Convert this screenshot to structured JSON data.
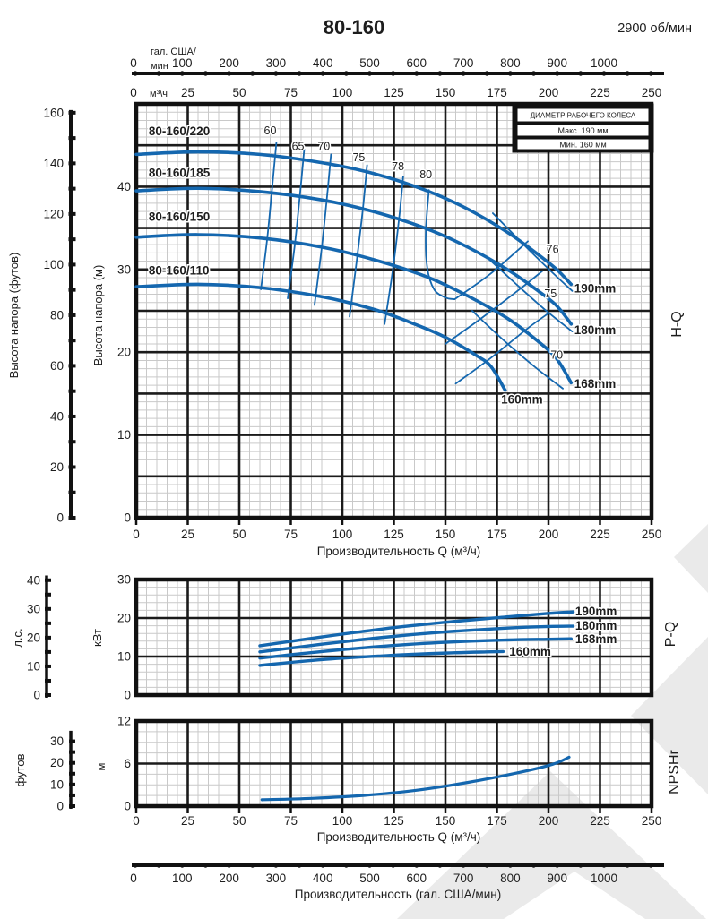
{
  "header": {
    "title": "80-160",
    "rpm": "2900 об/мин"
  },
  "legend": {
    "title": "ДИАМЕТР РАБОЧЕГО КОЛЕСА",
    "max": "Макс. 190 мм",
    "min": "Мин. 160 мм"
  },
  "colors": {
    "curve": "#1467af",
    "grid_major": "#1b1b1b",
    "grid_minor": "#c9c9c9",
    "watermark": "#eaeaea"
  },
  "top_axes": {
    "gal": {
      "unit_line1": "гал. США/",
      "unit_line2": "мин",
      "tick_labels": [
        "0",
        "100",
        "200",
        "300",
        "400",
        "500",
        "600",
        "700",
        "800",
        "900",
        "1000"
      ],
      "tick_values": [
        0,
        100,
        200,
        300,
        400,
        500,
        600,
        700,
        800,
        900,
        1000
      ],
      "range": [
        0,
        1100
      ],
      "dot_step": 50
    },
    "m3h": {
      "unit": "м³\\ч",
      "tick_labels": [
        "0",
        "25",
        "50",
        "75",
        "100",
        "125",
        "150",
        "175",
        "200",
        "225",
        "250"
      ],
      "tick_values": [
        0,
        25,
        50,
        75,
        100,
        125,
        150,
        175,
        200,
        225,
        250
      ]
    }
  },
  "bottom_axis_gal": {
    "tick_labels": [
      "0",
      "100",
      "200",
      "300",
      "400",
      "500",
      "600",
      "700",
      "800",
      "900",
      "1000"
    ],
    "tick_values": [
      0,
      100,
      200,
      300,
      400,
      500,
      600,
      700,
      800,
      900,
      1000
    ],
    "range": [
      0,
      1100
    ],
    "dot_step": 50,
    "caption": "Производительность (гал. США/мин)"
  },
  "chart_data": [
    {
      "id": "hq",
      "type": "line",
      "side_label": "H-Q",
      "x_caption": "Производительность Q (м³/ч)",
      "xlim": [
        0,
        250
      ],
      "x_major": 25,
      "x_minor": 5,
      "x_tick_labels": [
        "0",
        "25",
        "50",
        "75",
        "100",
        "125",
        "150",
        "175",
        "200",
        "225",
        "250"
      ],
      "ylim_m": [
        0,
        50
      ],
      "y_major": 5,
      "y_minor": 1,
      "y_axis_m": {
        "label": "Высота напора (м)",
        "tick_values": [
          0,
          10,
          20,
          30,
          40
        ],
        "tick_labels": [
          "0",
          "10",
          "20",
          "30",
          "40"
        ]
      },
      "y_axis_ft": {
        "label": "Высота напора (футов)",
        "range": [
          0,
          160
        ],
        "minor_step": 10,
        "tick_values": [
          0,
          20,
          40,
          60,
          80,
          100,
          120,
          140,
          160
        ],
        "tick_labels": [
          "0",
          "20",
          "40",
          "60",
          "80",
          "100",
          "120",
          "140",
          "160"
        ]
      },
      "series": [
        {
          "name": "80-160/220",
          "diameter": "190mm",
          "points": [
            [
              0,
              43.9
            ],
            [
              30,
              44.2
            ],
            [
              60,
              43.9
            ],
            [
              90,
              42.9
            ],
            [
              115,
              41.6
            ],
            [
              140,
              39.6
            ],
            [
              160,
              37.4
            ],
            [
              180,
              34.5
            ],
            [
              195,
              31.8
            ],
            [
              204,
              30.0
            ],
            [
              211,
              28.2
            ]
          ]
        },
        {
          "name": "80-160/185",
          "diameter": "180mm",
          "points": [
            [
              0,
              39.5
            ],
            [
              30,
              39.8
            ],
            [
              60,
              39.4
            ],
            [
              90,
              38.4
            ],
            [
              115,
              37.0
            ],
            [
              140,
              35.0
            ],
            [
              160,
              32.8
            ],
            [
              180,
              30.0
            ],
            [
              195,
              27.4
            ],
            [
              204,
              25.6
            ],
            [
              211,
              23.4
            ]
          ]
        },
        {
          "name": "80-160/150",
          "diameter": "168mm",
          "points": [
            [
              0,
              33.9
            ],
            [
              30,
              34.2
            ],
            [
              60,
              33.8
            ],
            [
              90,
              32.7
            ],
            [
              115,
              31.2
            ],
            [
              140,
              29.2
            ],
            [
              160,
              26.9
            ],
            [
              180,
              24.1
            ],
            [
              195,
              21.3
            ],
            [
              204,
              19.2
            ],
            [
              211,
              16.3
            ]
          ]
        },
        {
          "name": "80-160/110",
          "diameter": "160mm",
          "points": [
            [
              0,
              27.9
            ],
            [
              30,
              28.2
            ],
            [
              60,
              27.8
            ],
            [
              90,
              26.7
            ],
            [
              115,
              25.2
            ],
            [
              135,
              23.4
            ],
            [
              150,
              21.8
            ],
            [
              165,
              19.6
            ],
            [
              172,
              18.3
            ],
            [
              179,
              15.4
            ]
          ]
        }
      ],
      "model_labels": [
        {
          "text": "80-160/220",
          "pos": [
            3,
            46.2
          ]
        },
        {
          "text": "80-160/185",
          "pos": [
            3,
            41.2
          ]
        },
        {
          "text": "80-160/150",
          "pos": [
            3,
            35.9
          ]
        },
        {
          "text": "80-160/110",
          "pos": [
            3,
            29.4
          ]
        }
      ],
      "diameter_labels": [
        {
          "text": "190mm",
          "pos": [
            212.5,
            27.2
          ]
        },
        {
          "text": "180mm",
          "pos": [
            212.5,
            22.2
          ]
        },
        {
          "text": "168mm",
          "pos": [
            212.5,
            15.7
          ]
        },
        {
          "text": "160mm",
          "pos": [
            177,
            13.8
          ]
        }
      ],
      "efficiency_left": [
        {
          "label": "60",
          "label_pos": [
            65,
            46.3
          ],
          "pts": [
            [
              68,
              45.3
            ],
            [
              66,
              40
            ],
            [
              63.5,
              33.6
            ],
            [
              60.5,
              27.6
            ]
          ]
        },
        {
          "label": "65",
          "label_pos": [
            78.5,
            44.4
          ],
          "pts": [
            [
              81.5,
              44.5
            ],
            [
              79.5,
              39.2
            ],
            [
              77,
              33.1
            ],
            [
              73.5,
              26.5
            ]
          ]
        },
        {
          "label": "70",
          "label_pos": [
            91,
            44.4
          ],
          "pts": [
            [
              94.5,
              43.9
            ],
            [
              92.5,
              38.6
            ],
            [
              90,
              32.6
            ],
            [
              86.5,
              25.7
            ]
          ]
        },
        {
          "label": "75",
          "label_pos": [
            108,
            43.1
          ],
          "pts": [
            [
              112,
              42.6
            ],
            [
              110,
              37.4
            ],
            [
              107,
              31.1
            ],
            [
              103.5,
              24.3
            ]
          ]
        },
        {
          "label": "78",
          "label_pos": [
            127,
            42.0
          ],
          "pts": [
            [
              129.5,
              41.2
            ],
            [
              127.5,
              36.1
            ],
            [
              124.5,
              30
            ],
            [
              120.5,
              23.4
            ]
          ]
        },
        {
          "label": "80",
          "label_pos": [
            140.5,
            41.0
          ],
          "pts": [
            [
              142,
              39.6
            ],
            [
              140.5,
              34.5
            ],
            [
              141.2,
              30.2
            ],
            [
              144.5,
              27.6
            ],
            [
              150,
              26.6
            ],
            [
              154.5,
              26.4
            ]
          ]
        }
      ],
      "efficiency_right": [
        {
          "label": "76",
          "label_pos": [
            202,
            32.0
          ],
          "pts": [
            [
              173,
              36.8
            ],
            [
              188,
              33
            ],
            [
              202,
              29.6
            ],
            [
              211.5,
              27.4
            ]
          ]
        },
        {
          "label": "75",
          "label_pos": [
            201,
            26.6
          ],
          "pts": [
            [
              170,
              31.5
            ],
            [
              184,
              28.3
            ],
            [
              198,
              25.2
            ],
            [
              211.5,
              22.5
            ]
          ]
        },
        {
          "label": "70",
          "label_pos": [
            204,
            19.2
          ],
          "pts": [
            [
              163,
              25
            ],
            [
              178,
              21.5
            ],
            [
              193,
              18.3
            ],
            [
              207,
              15.6
            ]
          ]
        }
      ],
      "efficiency_cross": [
        {
          "pts": [
            [
              154.5,
              26.4
            ],
            [
              172,
              29.5
            ],
            [
              190,
              33.4
            ]
          ]
        },
        {
          "pts": [
            [
              150,
              21
            ],
            [
              168,
              24.2
            ],
            [
              186,
              27.6
            ],
            [
              197,
              29.8
            ]
          ]
        },
        {
          "pts": [
            [
              155,
              16.2
            ],
            [
              172,
              19.3
            ],
            [
              190,
              22.9
            ],
            [
              200,
              24.7
            ]
          ]
        }
      ]
    },
    {
      "id": "pq",
      "type": "line",
      "side_label": "P-Q",
      "xlim": [
        0,
        250
      ],
      "x_major": 25,
      "x_minor": 5,
      "ylim_kw": [
        0,
        30
      ],
      "y_major": 10,
      "y_minor": 2,
      "y_axis_kw": {
        "label": "кВт",
        "tick_values": [
          0,
          10,
          20,
          30
        ],
        "tick_labels": [
          "0",
          "10",
          "20",
          "30"
        ]
      },
      "y_axis_hp": {
        "label": "л.с.",
        "range": [
          0,
          41
        ],
        "minor_step": 5,
        "tick_values": [
          0,
          10,
          20,
          30,
          40
        ],
        "tick_labels": [
          "0",
          "10",
          "20",
          "30",
          "40"
        ]
      },
      "series": [
        {
          "name": "190mm",
          "points": [
            [
              60,
              12.8
            ],
            [
              90,
              15.1
            ],
            [
              120,
              17.2
            ],
            [
              150,
              18.9
            ],
            [
              180,
              20.3
            ],
            [
              200,
              21.2
            ],
            [
              212,
              21.6
            ]
          ]
        },
        {
          "name": "180mm",
          "points": [
            [
              60,
              11.2
            ],
            [
              90,
              13.2
            ],
            [
              120,
              15.0
            ],
            [
              150,
              16.4
            ],
            [
              180,
              17.4
            ],
            [
              200,
              17.8
            ],
            [
              212,
              17.9
            ]
          ]
        },
        {
          "name": "168mm",
          "points": [
            [
              60,
              9.6
            ],
            [
              90,
              11.3
            ],
            [
              120,
              12.7
            ],
            [
              150,
              13.7
            ],
            [
              180,
              14.3
            ],
            [
              200,
              14.5
            ],
            [
              211,
              14.6
            ]
          ]
        },
        {
          "name": "160mm",
          "points": [
            [
              60,
              7.7
            ],
            [
              90,
              9.2
            ],
            [
              120,
              10.2
            ],
            [
              150,
              10.9
            ],
            [
              170,
              11.2
            ],
            [
              178,
              11.3
            ]
          ]
        }
      ],
      "diameter_labels": [
        {
          "text": "190mm",
          "pos": [
            213,
            21.6
          ]
        },
        {
          "text": "180mm",
          "pos": [
            213,
            17.9
          ]
        },
        {
          "text": "168mm",
          "pos": [
            213,
            14.4
          ]
        },
        {
          "text": "160mm",
          "pos": [
            181,
            11.2
          ]
        }
      ]
    },
    {
      "id": "npshr",
      "type": "line",
      "side_label": "NPSHr",
      "x_caption": "Производительность Q (м³/ч)",
      "xlim": [
        0,
        250
      ],
      "x_major": 25,
      "x_minor": 5,
      "x_tick_labels": [
        "0",
        "25",
        "50",
        "75",
        "100",
        "125",
        "150",
        "175",
        "200",
        "225",
        "250"
      ],
      "ylim_m": [
        0,
        12
      ],
      "y_major": 6,
      "y_minor": 1.5,
      "y_axis_m": {
        "label": "м",
        "tick_values": [
          0,
          6,
          12
        ],
        "tick_labels": [
          "0",
          "6",
          "12"
        ]
      },
      "y_axis_ft": {
        "label": "футов",
        "range": [
          0,
          34
        ],
        "minor_step": 5,
        "tick_values": [
          0,
          10,
          20,
          30
        ],
        "tick_labels": [
          "0",
          "10",
          "20",
          "30"
        ]
      },
      "series": [
        {
          "name": "NPSHr",
          "points": [
            [
              61,
              0.9
            ],
            [
              85,
              1.1
            ],
            [
              110,
              1.5
            ],
            [
              135,
              2.2
            ],
            [
              160,
              3.3
            ],
            [
              185,
              4.7
            ],
            [
              202,
              5.9
            ],
            [
              210,
              6.9
            ]
          ]
        }
      ]
    }
  ]
}
